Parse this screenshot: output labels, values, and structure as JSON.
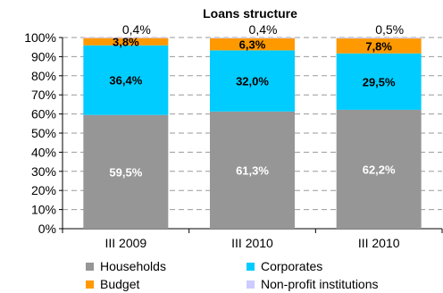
{
  "chart_data": {
    "type": "bar",
    "stacked": true,
    "title": "Loans structure",
    "categories": [
      "III 2009",
      "III 2010",
      "III 2010"
    ],
    "ylim": [
      0,
      100
    ],
    "y_ticks": [
      "0%",
      "10%",
      "20%",
      "30%",
      "40%",
      "50%",
      "60%",
      "70%",
      "80%",
      "90%",
      "100%"
    ],
    "grid": "dashed-horizontal",
    "legend_position": "bottom",
    "series": [
      {
        "name": "Households",
        "color": "#969696",
        "values": [
          59.5,
          61.3,
          62.2
        ],
        "labels": [
          "59,5%",
          "61,3%",
          "62,2%"
        ],
        "label_color": "#ffffff"
      },
      {
        "name": "Corporates",
        "color": "#00ccff",
        "values": [
          36.4,
          32.0,
          29.5
        ],
        "labels": [
          "36,4%",
          "32,0%",
          "29,5%"
        ],
        "label_color": "#000000"
      },
      {
        "name": "Budget",
        "color": "#ff9900",
        "values": [
          3.8,
          6.3,
          7.8
        ],
        "labels": [
          "3,8%",
          "6,3%",
          "7,8%"
        ],
        "label_color": "#000000"
      },
      {
        "name": "Non-profit institutions",
        "color": "#ccccff",
        "values": [
          0.4,
          0.4,
          0.5
        ],
        "labels": [
          "0,4%",
          "0,4%",
          "0,5%"
        ],
        "label_color": "#000000"
      }
    ]
  }
}
